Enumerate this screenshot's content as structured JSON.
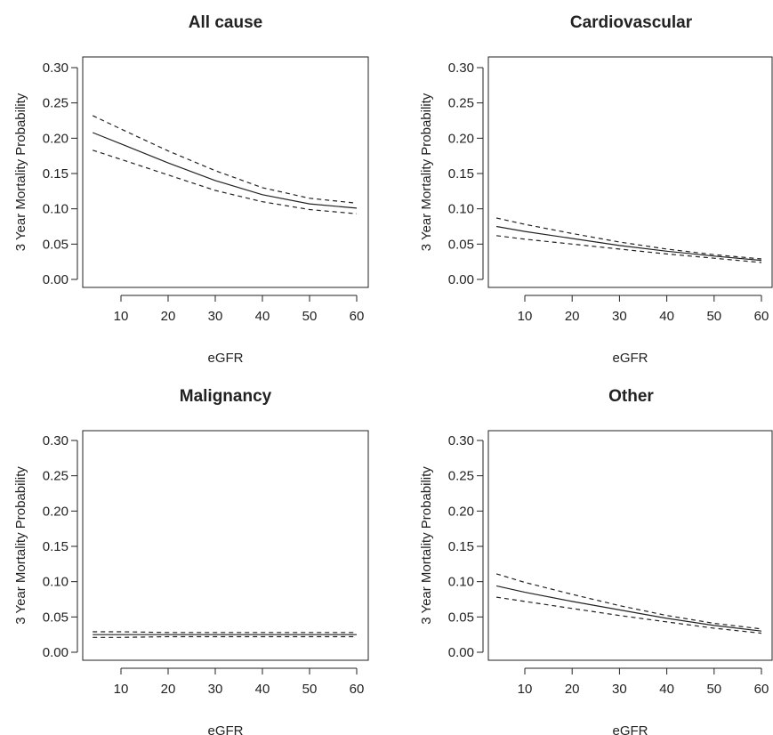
{
  "chart_data": [
    {
      "type": "line",
      "title": "All cause",
      "xlabel": "eGFR",
      "ylabel": "3 Year Mortality Probability",
      "xlim": [
        4,
        60
      ],
      "ylim": [
        0,
        0.3
      ],
      "xticks": [
        "10",
        "20",
        "30",
        "40",
        "50",
        "60"
      ],
      "yticks": [
        "0.00",
        "0.05",
        "0.10",
        "0.15",
        "0.20",
        "0.25",
        "0.30"
      ],
      "x": [
        4,
        10,
        20,
        30,
        40,
        50,
        60
      ],
      "series": [
        {
          "values": [
            0.208,
            0.192,
            0.165,
            0.14,
            0.12,
            0.107,
            0.101
          ],
          "style": "solid"
        },
        {
          "values": [
            0.232,
            0.213,
            0.182,
            0.154,
            0.13,
            0.115,
            0.108
          ],
          "style": "dashed"
        },
        {
          "values": [
            0.183,
            0.17,
            0.148,
            0.126,
            0.11,
            0.099,
            0.093
          ],
          "style": "dashed"
        }
      ]
    },
    {
      "type": "line",
      "title": "Cardiovascular",
      "xlabel": "eGFR",
      "ylabel": "3 Year Mortality Probability",
      "xlim": [
        4,
        60
      ],
      "ylim": [
        0,
        0.3
      ],
      "xticks": [
        "10",
        "20",
        "30",
        "40",
        "50",
        "60"
      ],
      "yticks": [
        "0.00",
        "0.05",
        "0.10",
        "0.15",
        "0.20",
        "0.25",
        "0.30"
      ],
      "x": [
        4,
        10,
        20,
        30,
        40,
        50,
        60
      ],
      "series": [
        {
          "values": [
            0.075,
            0.068,
            0.058,
            0.048,
            0.04,
            0.033,
            0.027
          ],
          "style": "solid"
        },
        {
          "values": [
            0.087,
            0.078,
            0.065,
            0.053,
            0.043,
            0.035,
            0.029
          ],
          "style": "dashed"
        },
        {
          "values": [
            0.062,
            0.057,
            0.05,
            0.043,
            0.036,
            0.03,
            0.024
          ],
          "style": "dashed"
        }
      ]
    },
    {
      "type": "line",
      "title": "Malignancy",
      "xlabel": "eGFR",
      "ylabel": "3 Year Mortality Probability",
      "xlim": [
        4,
        60
      ],
      "ylim": [
        0,
        0.3
      ],
      "xticks": [
        "10",
        "20",
        "30",
        "40",
        "50",
        "60"
      ],
      "yticks": [
        "0.00",
        "0.05",
        "0.10",
        "0.15",
        "0.20",
        "0.25",
        "0.30"
      ],
      "x": [
        4,
        10,
        20,
        30,
        40,
        50,
        60
      ],
      "series": [
        {
          "values": [
            0.025,
            0.025,
            0.025,
            0.025,
            0.025,
            0.025,
            0.025
          ],
          "style": "solid"
        },
        {
          "values": [
            0.029,
            0.029,
            0.028,
            0.028,
            0.028,
            0.028,
            0.028
          ],
          "style": "dashed"
        },
        {
          "values": [
            0.021,
            0.021,
            0.022,
            0.022,
            0.022,
            0.022,
            0.022
          ],
          "style": "dashed"
        }
      ]
    },
    {
      "type": "line",
      "title": "Other",
      "xlabel": "eGFR",
      "ylabel": "3 Year Mortality Probability",
      "xlim": [
        4,
        60
      ],
      "ylim": [
        0,
        0.3
      ],
      "xticks": [
        "10",
        "20",
        "30",
        "40",
        "50",
        "60"
      ],
      "yticks": [
        "0.00",
        "0.05",
        "0.10",
        "0.15",
        "0.20",
        "0.25",
        "0.30"
      ],
      "x": [
        4,
        10,
        20,
        30,
        40,
        50,
        60
      ],
      "series": [
        {
          "values": [
            0.094,
            0.085,
            0.072,
            0.06,
            0.048,
            0.038,
            0.03
          ],
          "style": "solid"
        },
        {
          "values": [
            0.111,
            0.099,
            0.082,
            0.066,
            0.052,
            0.041,
            0.033
          ],
          "style": "dashed"
        },
        {
          "values": [
            0.078,
            0.072,
            0.062,
            0.052,
            0.043,
            0.034,
            0.027
          ],
          "style": "dashed"
        }
      ]
    }
  ]
}
